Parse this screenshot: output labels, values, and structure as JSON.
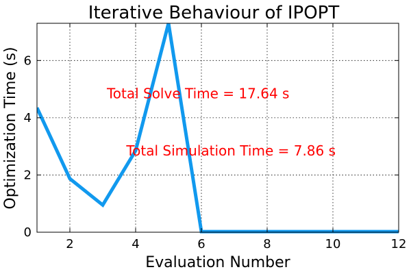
{
  "chart_data": {
    "type": "line",
    "title": "Iterative Behaviour of IPOPT",
    "xlabel": "Evaluation Number",
    "ylabel": "Optimization Time (s)",
    "xlim": [
      1,
      12
    ],
    "ylim": [
      0,
      7.3
    ],
    "xticks": [
      2,
      4,
      6,
      8,
      10,
      12
    ],
    "yticks": [
      0,
      2,
      4,
      6
    ],
    "grid": true,
    "series": [
      {
        "x": [
          1,
          2,
          3,
          4,
          5,
          6,
          7,
          8,
          9,
          10,
          11,
          12
        ],
        "values": [
          4.35,
          1.87,
          0.95,
          2.85,
          7.3,
          0.02,
          0.02,
          0.02,
          0.02,
          0.02,
          0.02,
          0.02
        ],
        "color": "#1199ee"
      }
    ],
    "annotations": [
      {
        "text": "Total Solve Time  = 17.64 s",
        "x": 5.9,
        "y": 4.85,
        "color": "#ff0000"
      },
      {
        "text": "Total Simulation Time = 7.86 s",
        "x": 6.9,
        "y": 2.85,
        "color": "#ff0000"
      }
    ]
  }
}
